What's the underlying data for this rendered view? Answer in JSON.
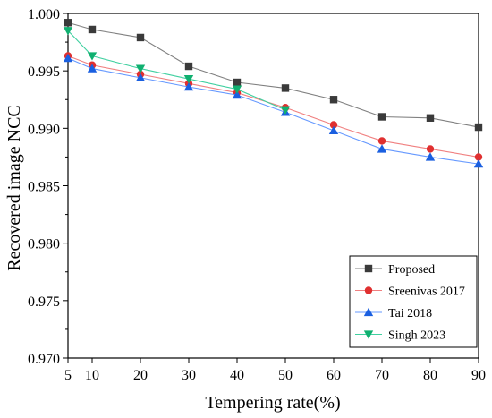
{
  "chart_data": {
    "type": "line",
    "xlabel": "Tempering rate(%)",
    "ylabel": "Recovered image NCC",
    "x": [
      5,
      10,
      20,
      30,
      40,
      50,
      60,
      70,
      80,
      90
    ],
    "x_ticks": [
      5,
      10,
      20,
      30,
      40,
      50,
      60,
      70,
      80,
      90
    ],
    "xlim": [
      5,
      90
    ],
    "ylim": [
      0.97,
      1.0
    ],
    "y_ticks": [
      0.97,
      0.975,
      0.98,
      0.985,
      0.99,
      0.995,
      1.0
    ],
    "y_tick_labels": [
      "0.970",
      "0.975",
      "0.980",
      "0.985",
      "0.990",
      "0.995",
      "1.000"
    ],
    "grid": false,
    "legend_position": "bottom-right",
    "series": [
      {
        "name": "Proposed",
        "color": "#808080",
        "marker_color": "#3a3a3a",
        "marker": "square",
        "values": [
          0.9992,
          0.9986,
          0.9979,
          0.9954,
          0.994,
          0.9935,
          0.9925,
          0.991,
          0.9909,
          0.9901
        ]
      },
      {
        "name": "Sreenivas 2017",
        "color": "#f08080",
        "marker_color": "#e03030",
        "marker": "circle",
        "values": [
          0.9963,
          0.9955,
          0.9947,
          0.9939,
          0.9931,
          0.9918,
          0.9903,
          0.9889,
          0.9882,
          0.9875
        ]
      },
      {
        "name": "Tai 2018",
        "color": "#6699ff",
        "marker_color": "#1a5fe0",
        "marker": "triangle-up",
        "values": [
          0.9961,
          0.9952,
          0.9944,
          0.9936,
          0.9929,
          0.9914,
          0.9898,
          0.9882,
          0.9875,
          0.9869
        ]
      },
      {
        "name": "Singh 2023",
        "color": "#40d0a0",
        "marker_color": "#10b070",
        "marker": "triangle-down",
        "values": [
          0.9985,
          0.9963,
          0.9952,
          0.9943,
          0.9934,
          0.9916,
          null,
          null,
          null,
          null
        ]
      }
    ]
  }
}
